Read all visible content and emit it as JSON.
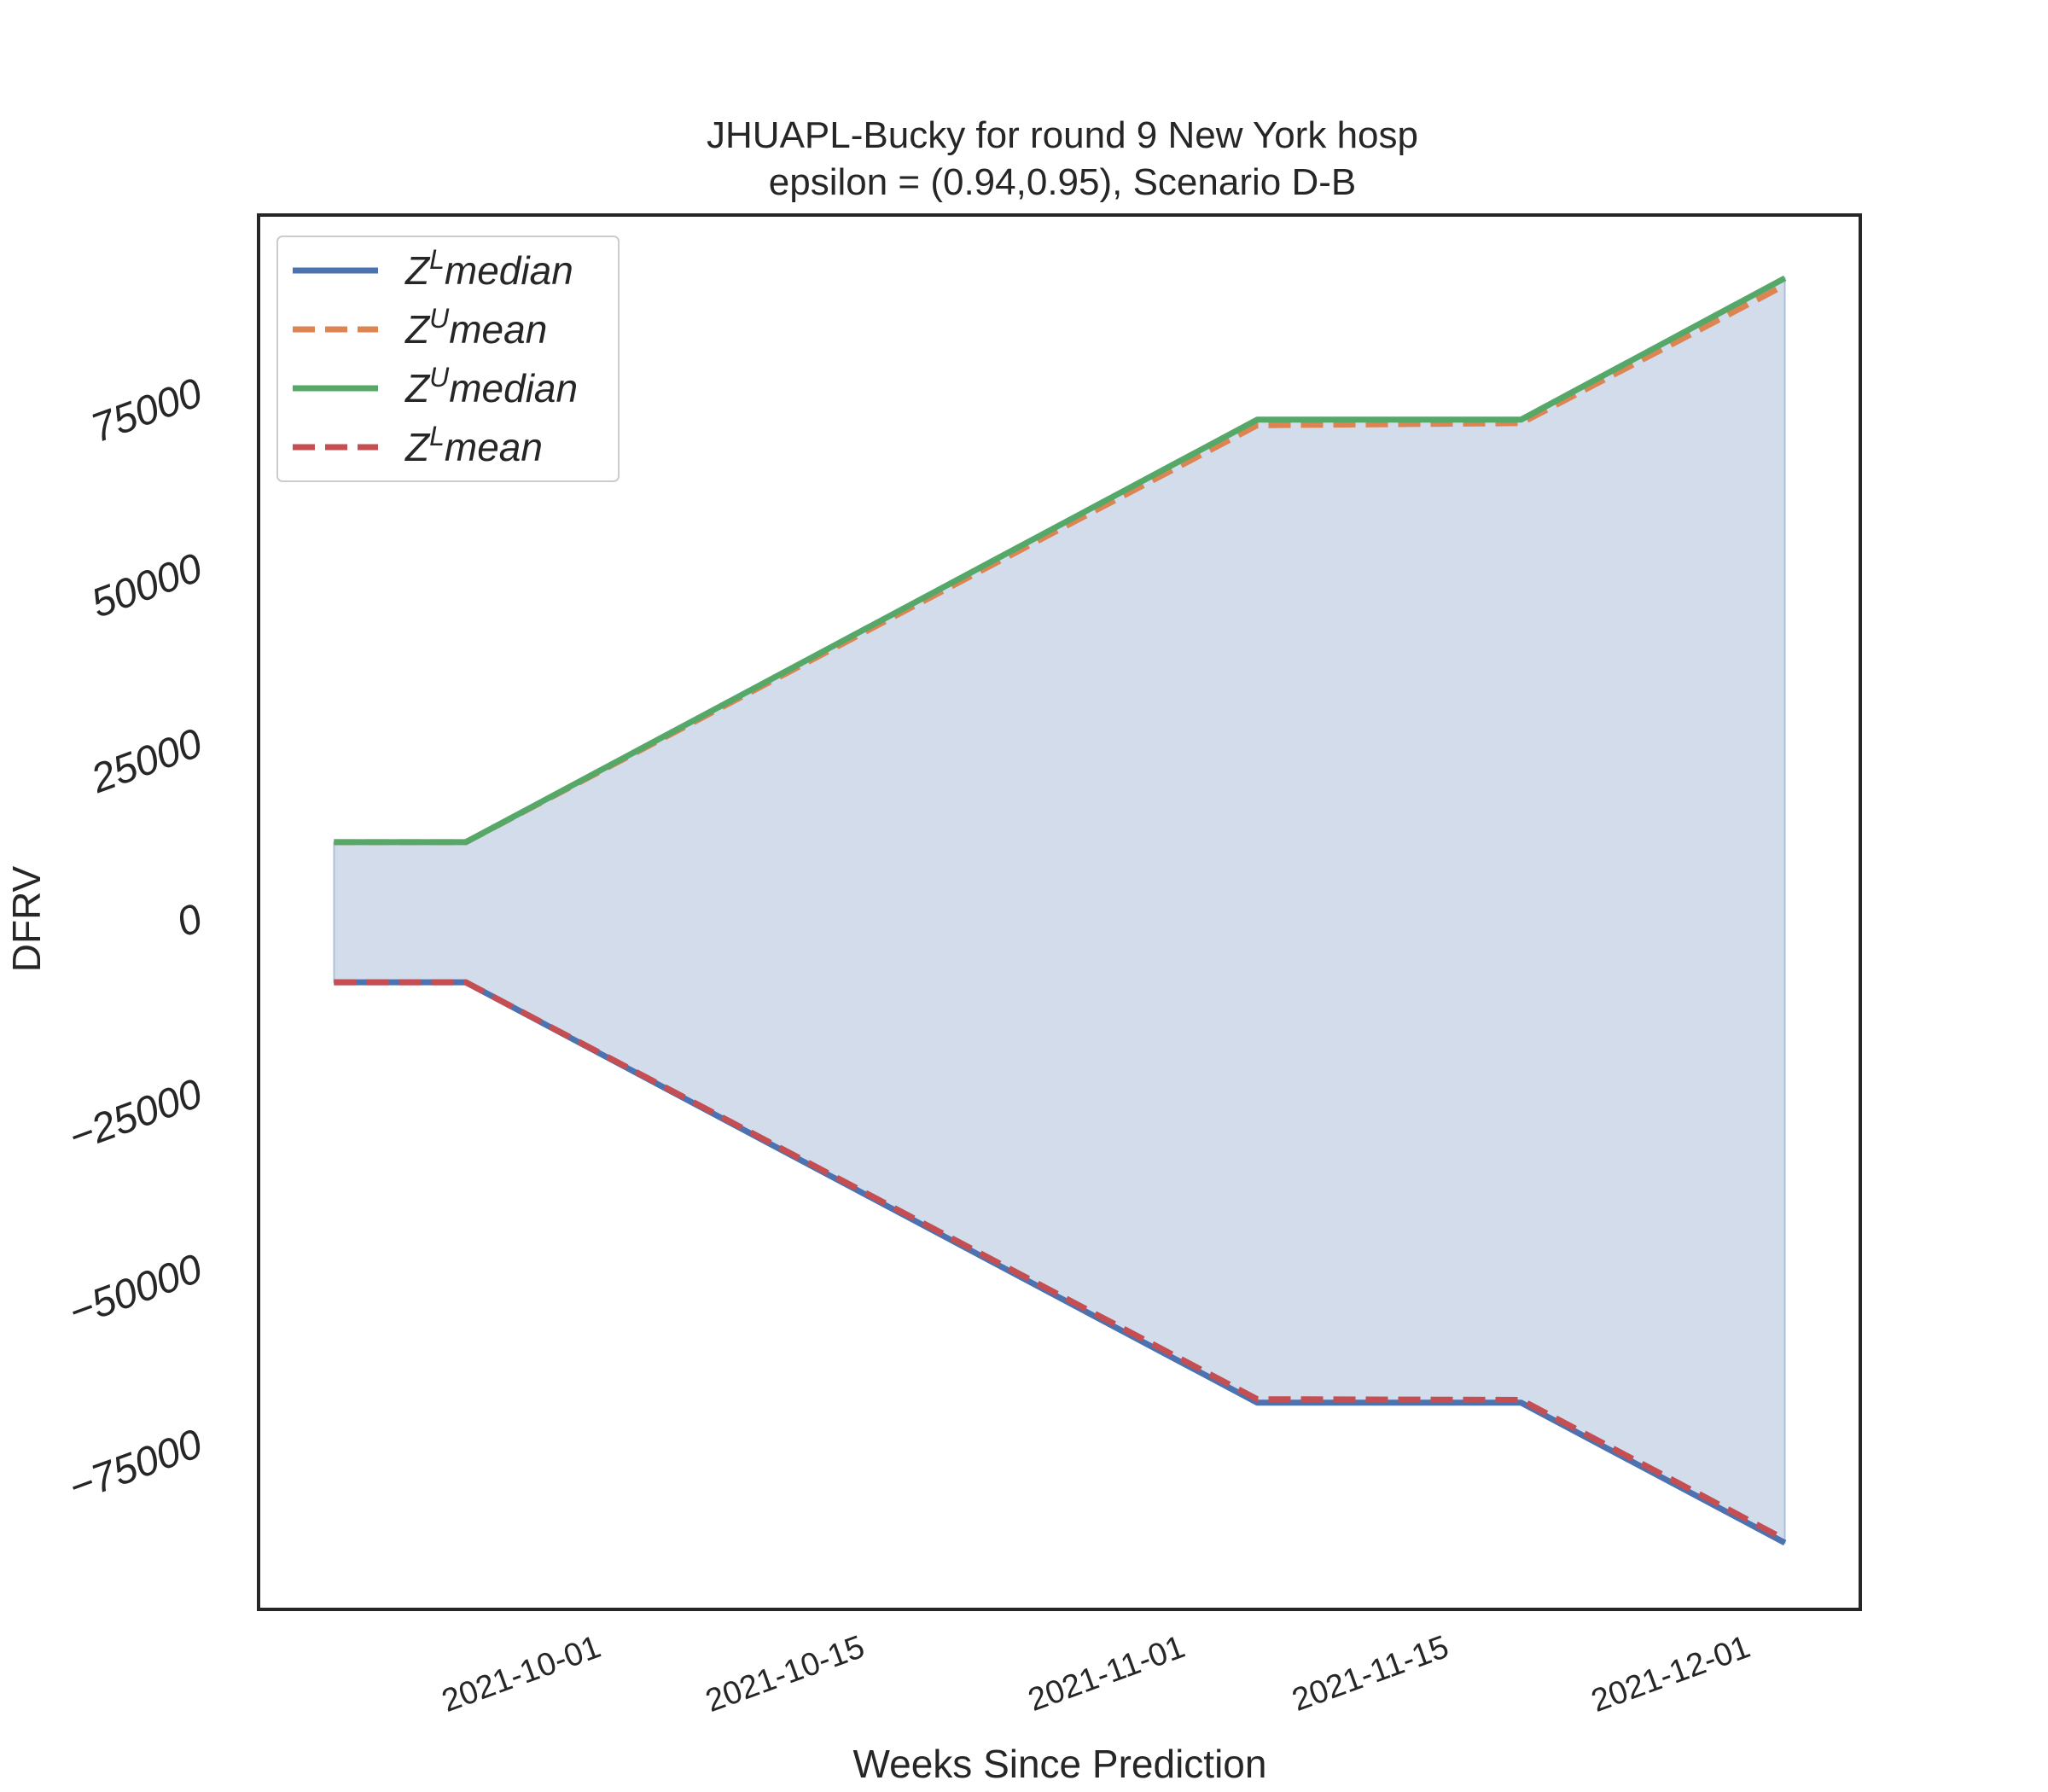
{
  "chart_data": {
    "type": "line",
    "title_line1": "JHUAPL-Bucky for round 9 New York  hosp",
    "title_line2": "epsilon = (0.94,0.95), Scenario D-B",
    "xlabel": "Weeks Since Prediction",
    "ylabel": "DFRV",
    "x": [
      "2021-09-18",
      "2021-09-25",
      "2021-11-06",
      "2021-11-20",
      "2021-12-04"
    ],
    "x_ticks": [
      "2021-10-01",
      "2021-10-15",
      "2021-11-01",
      "2021-11-15",
      "2021-12-01"
    ],
    "x_range": [
      "2021-09-14",
      "2021-12-08"
    ],
    "y_ticks": [
      75000,
      50000,
      25000,
      0,
      -25000,
      -50000,
      -75000
    ],
    "y_tick_labels": [
      "75000",
      "50000",
      "25000",
      "0",
      "−25000",
      "−50000",
      "−75000"
    ],
    "ylim": [
      -99000,
      100000
    ],
    "grid": false,
    "legend_position": "upper left",
    "series": [
      {
        "name": "Z^L median",
        "legend_base": "Z",
        "legend_sup": "L",
        "legend_rest": "median",
        "color": "#4c72b0",
        "dash": "solid",
        "values": [
          -9500,
          -9500,
          -69500,
          -69500,
          -89500
        ]
      },
      {
        "name": "Z^U mean",
        "legend_base": "Z",
        "legend_sup": "U",
        "legend_rest": "mean",
        "color": "#dd8452",
        "dash": "dashed",
        "values": [
          10500,
          10500,
          70000,
          70300,
          90000
        ]
      },
      {
        "name": "Z^U median",
        "legend_base": "Z",
        "legend_sup": "U",
        "legend_rest": "median",
        "color": "#55a868",
        "dash": "solid",
        "values": [
          10500,
          10500,
          70800,
          70800,
          91000
        ]
      },
      {
        "name": "Z^L mean",
        "legend_base": "Z",
        "legend_sup": "L",
        "legend_rest": "mean",
        "color": "#c44e52",
        "dash": "dashed",
        "values": [
          -9500,
          -9500,
          -69000,
          -69100,
          -89000
        ]
      }
    ],
    "fill_between": {
      "lower_series": 0,
      "upper_series": 2,
      "color": "#4c72b0",
      "opacity": 0.25
    }
  }
}
